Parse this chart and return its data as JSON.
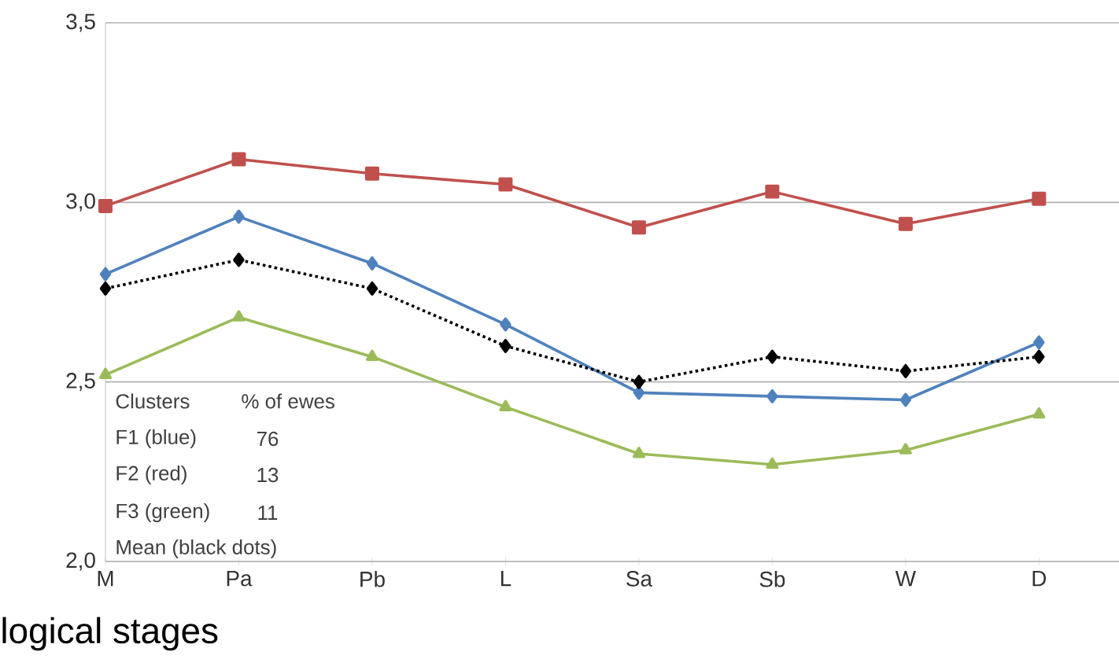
{
  "chart_data": {
    "type": "line",
    "xlabel": "logical stages",
    "categories": [
      "M",
      "Pa",
      "Pb",
      "L",
      "Sa",
      "Sb",
      "W",
      "D"
    ],
    "ylim": [
      2.0,
      3.5
    ],
    "yticks": [
      {
        "value": 2.0,
        "label": "2,0"
      },
      {
        "value": 2.5,
        "label": "2,5"
      },
      {
        "value": 3.0,
        "label": "3,0"
      },
      {
        "value": 3.5,
        "label": "3,5"
      }
    ],
    "grid": "y",
    "series": [
      {
        "color": "#c0504d",
        "marker": "square",
        "line_style": "solid",
        "values": [
          2.99,
          3.12,
          3.08,
          3.05,
          2.93,
          3.03,
          2.94,
          3.01
        ]
      },
      {
        "color": "#4f81bd",
        "marker": "diamond",
        "line_style": "solid",
        "values": [
          2.8,
          2.96,
          2.83,
          2.66,
          2.47,
          2.46,
          2.45,
          2.61
        ]
      },
      {
        "color": "#000000",
        "marker": "diamond",
        "line_style": "dotted",
        "values": [
          2.76,
          2.84,
          2.76,
          2.6,
          2.5,
          2.57,
          2.53,
          2.57
        ]
      },
      {
        "color": "#9bbb59",
        "marker": "triangle",
        "line_style": "solid",
        "values": [
          2.52,
          2.68,
          2.57,
          2.43,
          2.3,
          2.27,
          2.31,
          2.41
        ]
      }
    ],
    "annotations": [
      "Clusters",
      "% of ewes",
      "F1 (blue)",
      "76",
      "F2 (red)",
      "13",
      "F3 (green)",
      "11",
      "Mean (black dots)"
    ]
  }
}
